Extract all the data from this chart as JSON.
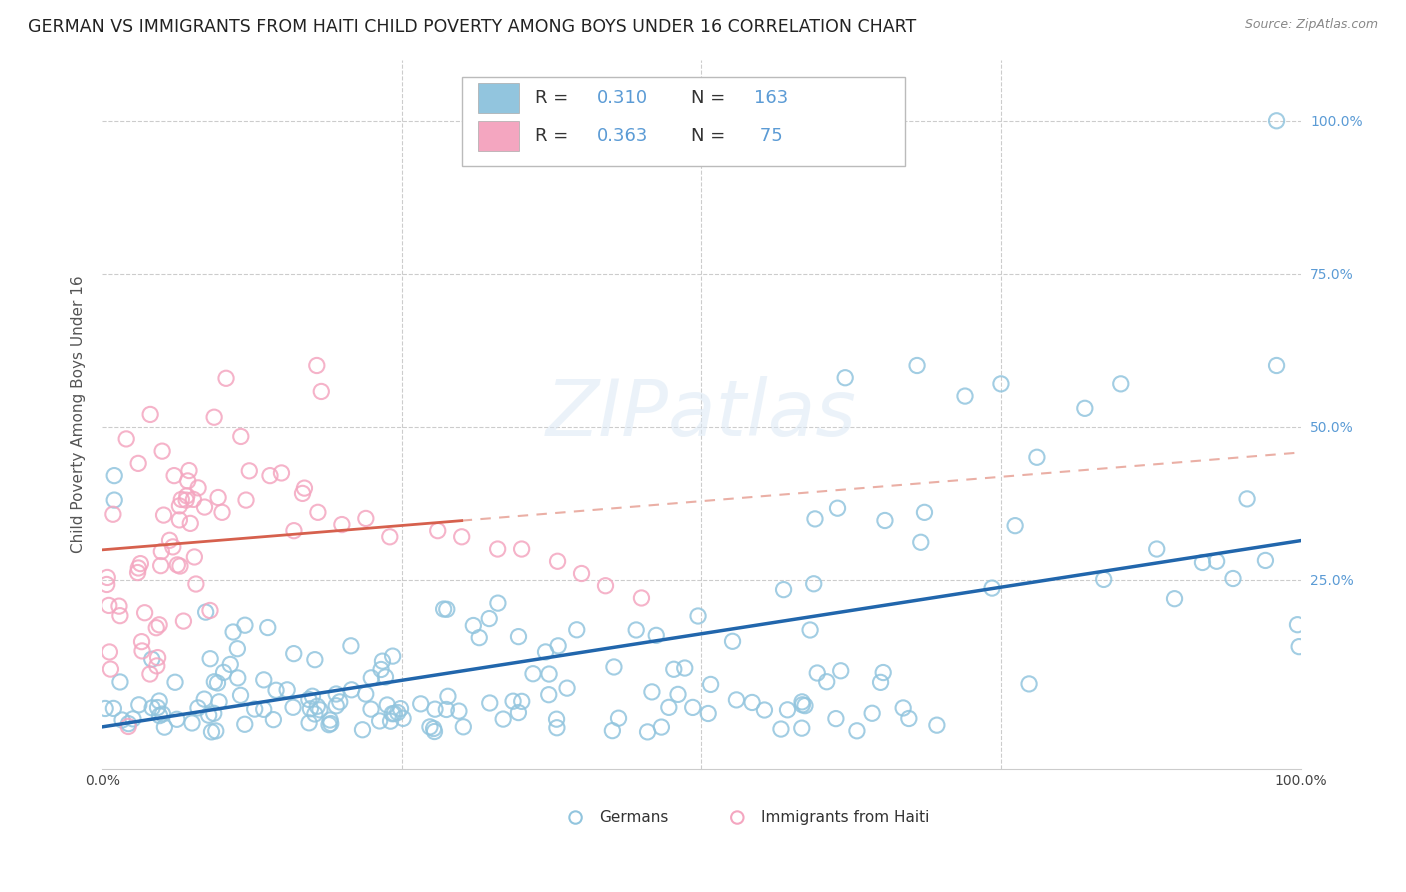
{
  "title": "GERMAN VS IMMIGRANTS FROM HAITI CHILD POVERTY AMONG BOYS UNDER 16 CORRELATION CHART",
  "source": "Source: ZipAtlas.com",
  "ylabel": "Child Poverty Among Boys Under 16",
  "legend_labels": [
    "Germans",
    "Immigrants from Haiti"
  ],
  "r_german": 0.31,
  "n_german": 163,
  "r_haiti": 0.363,
  "n_haiti": 75,
  "blue_color": "#92c5de",
  "pink_color": "#f4a6c0",
  "blue_line_color": "#2166ac",
  "pink_line_color": "#d6604d",
  "watermark": "ZIPatlas",
  "title_fontsize": 12.5,
  "axis_label_fontsize": 11,
  "tick_label_fontsize": 10,
  "background_color": "#ffffff",
  "grid_color": "#cccccc",
  "right_tick_color": "#5b9bd5",
  "source_color": "#888888"
}
